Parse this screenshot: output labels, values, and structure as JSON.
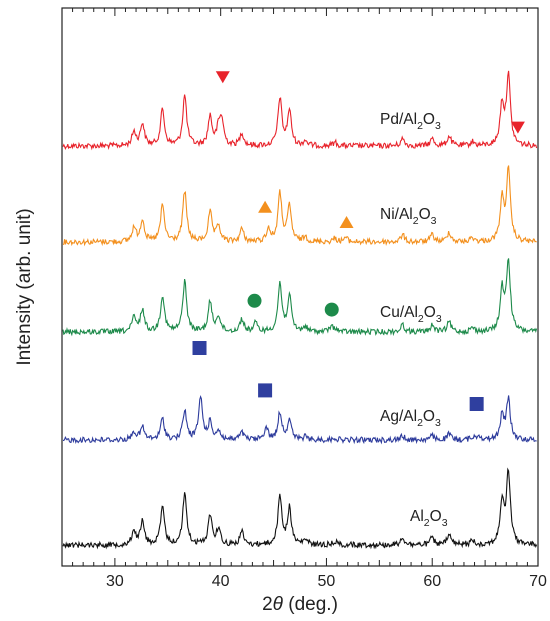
{
  "chart_data": {
    "type": "line",
    "title": "",
    "xlabel_prefix": "2",
    "xlabel_symbol": "θ",
    "xlabel_suffix": " (deg.)",
    "ylabel": "Intensity (arb. unit)",
    "xlim": [
      25,
      70
    ],
    "xticks": [
      30,
      40,
      50,
      60,
      70
    ],
    "y_ticks_labeled": false,
    "grid": false,
    "legend": "none",
    "baseline_peaks_2theta": [
      {
        "x": 31.8,
        "h": 0.2
      },
      {
        "x": 32.6,
        "h": 0.32
      },
      {
        "x": 34.5,
        "h": 0.52
      },
      {
        "x": 36.6,
        "h": 0.72
      },
      {
        "x": 39.0,
        "h": 0.42
      },
      {
        "x": 39.8,
        "h": 0.22
      },
      {
        "x": 42.0,
        "h": 0.18
      },
      {
        "x": 45.6,
        "h": 0.68
      },
      {
        "x": 46.5,
        "h": 0.5
      },
      {
        "x": 48.0,
        "h": 0.07
      },
      {
        "x": 50.8,
        "h": 0.05
      },
      {
        "x": 57.2,
        "h": 0.1
      },
      {
        "x": 60.0,
        "h": 0.1
      },
      {
        "x": 61.6,
        "h": 0.14
      },
      {
        "x": 63.8,
        "h": 0.06
      },
      {
        "x": 66.6,
        "h": 0.58
      },
      {
        "x": 67.2,
        "h": 1.0
      }
    ],
    "series": [
      {
        "label_base": "Pd/Al",
        "label_sub1": "2",
        "label_mid": "O",
        "label_sub2": "3",
        "color": "#e8232b",
        "marker": "triangle-down",
        "marker_color": "#e8232b",
        "extra_peaks": [
          {
            "x": 40.1,
            "h": 0.35
          }
        ],
        "markers": [
          {
            "x": 40.2,
            "y": 0.86
          },
          {
            "x": 68.1,
            "y": 0.23
          }
        ]
      },
      {
        "label_base": "Ni/Al",
        "label_sub1": "2",
        "label_mid": "O",
        "label_sub2": "3",
        "color": "#f3901e",
        "marker": "triangle-up",
        "marker_color": "#f3901e",
        "extra_peaks": [
          {
            "x": 44.5,
            "h": 0.18
          },
          {
            "x": 51.8,
            "h": 0.06
          }
        ],
        "markers": [
          {
            "x": 44.2,
            "y": 0.44
          },
          {
            "x": 51.9,
            "y": 0.25
          }
        ]
      },
      {
        "label_base": "Cu/Al",
        "label_sub1": "2",
        "label_mid": "O",
        "label_sub2": "3",
        "color": "#1d8a4a",
        "marker": "circle",
        "marker_color": "#1d8a4a",
        "extra_peaks": [
          {
            "x": 43.3,
            "h": 0.12
          },
          {
            "x": 50.4,
            "h": 0.06
          }
        ],
        "markers": [
          {
            "x": 43.2,
            "y": 0.39
          },
          {
            "x": 50.5,
            "y": 0.28
          }
        ]
      },
      {
        "label_base": "Ag/Al",
        "label_sub1": "2",
        "label_mid": "O",
        "label_sub2": "3",
        "color": "#2d3b9c",
        "marker": "square",
        "marker_color": "#2f3f9f",
        "extra_peaks": [
          {
            "x": 38.1,
            "h": 1.05
          },
          {
            "x": 44.3,
            "h": 0.3
          },
          {
            "x": 64.4,
            "h": 0.12
          },
          {
            "x": 77.4,
            "h": 0.0
          }
        ],
        "markers": [
          {
            "x": 38.0,
            "y": 1.15
          },
          {
            "x": 44.2,
            "y": 0.62
          },
          {
            "x": 64.2,
            "y": 0.45
          }
        ]
      },
      {
        "label_base": "Al",
        "label_sub1": "2",
        "label_mid": "O",
        "label_sub2": "3",
        "color": "#111111",
        "marker": "none",
        "marker_color": "#111111",
        "extra_peaks": [],
        "markers": []
      }
    ]
  }
}
